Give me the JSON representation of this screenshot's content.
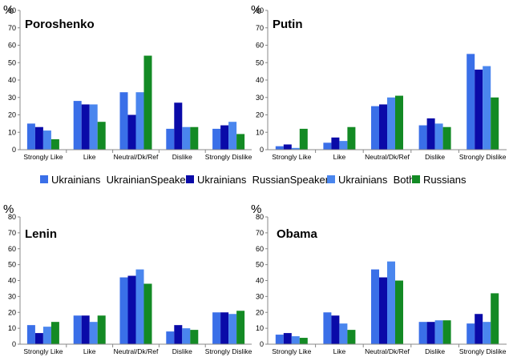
{
  "legend": {
    "items": [
      {
        "label": "Ukrainians  UkrainianSpeakers",
        "color": "#3a6fe8"
      },
      {
        "label": "Ukrainians  RussianSpeakers",
        "color": "#0a0aa8"
      },
      {
        "label": "Ukrainians  Both",
        "color": "#4a86ee"
      },
      {
        "label": "Russians",
        "color": "#138a24"
      }
    ]
  },
  "chart_data": [
    {
      "type": "bar",
      "title": "Poroshenko",
      "ylabel": "%",
      "ylim": [
        0,
        80
      ],
      "yticks": [
        "0",
        "10",
        "20",
        "30",
        "40",
        "50",
        "60",
        "70",
        "80"
      ],
      "categories": [
        "Strongly Like",
        "Like",
        "Neutral/Dk/Ref",
        "Dislike",
        "Strongly Dislike"
      ],
      "series": [
        {
          "name": "Ukrainians  UkrainianSpeakers",
          "values": [
            15,
            28,
            33,
            12,
            12
          ]
        },
        {
          "name": "Ukrainians  RussianSpeakers",
          "values": [
            13,
            26,
            20,
            27,
            14
          ]
        },
        {
          "name": "Ukrainians  Both",
          "values": [
            11,
            26,
            33,
            13,
            16
          ]
        },
        {
          "name": "Russians",
          "values": [
            6,
            16,
            54,
            13,
            9
          ]
        }
      ]
    },
    {
      "type": "bar",
      "title": "Putin",
      "ylabel": "%",
      "ylim": [
        0,
        80
      ],
      "yticks": [
        "0",
        "10",
        "20",
        "30",
        "40",
        "50",
        "60",
        "70",
        "80"
      ],
      "categories": [
        "Strongly Like",
        "Like",
        "Neutral/Dk/Ref",
        "Dislike",
        "Strongly Dislike"
      ],
      "series": [
        {
          "name": "Ukrainians  UkrainianSpeakers",
          "values": [
            2,
            4,
            25,
            14,
            55
          ]
        },
        {
          "name": "Ukrainians  RussianSpeakers",
          "values": [
            3,
            7,
            26,
            18,
            46
          ]
        },
        {
          "name": "Ukrainians  Both",
          "values": [
            1,
            5,
            30,
            15,
            48
          ]
        },
        {
          "name": "Russians",
          "values": [
            12,
            13,
            31,
            13,
            30
          ]
        }
      ]
    },
    {
      "type": "bar",
      "title": "Lenin",
      "ylabel": "%",
      "ylim": [
        0,
        80
      ],
      "yticks": [
        "0",
        "10",
        "20",
        "30",
        "40",
        "50",
        "60",
        "70",
        "80"
      ],
      "categories": [
        "Strongly Like",
        "Like",
        "Neutral/Dk/Ref",
        "Dislike",
        "Strongly Dislike"
      ],
      "series": [
        {
          "name": "Ukrainians  UkrainianSpeakers",
          "values": [
            12,
            18,
            42,
            8,
            20
          ]
        },
        {
          "name": "Ukrainians  RussianSpeakers",
          "values": [
            7,
            18,
            43,
            12,
            20
          ]
        },
        {
          "name": "Ukrainians  Both",
          "values": [
            11,
            14,
            47,
            10,
            19
          ]
        },
        {
          "name": "Russians",
          "values": [
            14,
            18,
            38,
            9,
            21
          ]
        }
      ]
    },
    {
      "type": "bar",
      "title": "Obama",
      "ylabel": "%",
      "ylim": [
        0,
        80
      ],
      "yticks": [
        "0",
        "10",
        "20",
        "30",
        "40",
        "50",
        "60",
        "70",
        "80"
      ],
      "categories": [
        "Strongly Like",
        "Like",
        "Neutral/Dk/Ref",
        "Dislike",
        "Strongly Dislike"
      ],
      "series": [
        {
          "name": "Ukrainians  UkrainianSpeakers",
          "values": [
            6,
            20,
            47,
            14,
            13
          ]
        },
        {
          "name": "Ukrainians  RussianSpeakers",
          "values": [
            7,
            18,
            42,
            14,
            19
          ]
        },
        {
          "name": "Ukrainians  Both",
          "values": [
            5,
            13,
            52,
            15,
            14
          ]
        },
        {
          "name": "Russians",
          "values": [
            4,
            9,
            40,
            15,
            32
          ]
        }
      ]
    }
  ]
}
